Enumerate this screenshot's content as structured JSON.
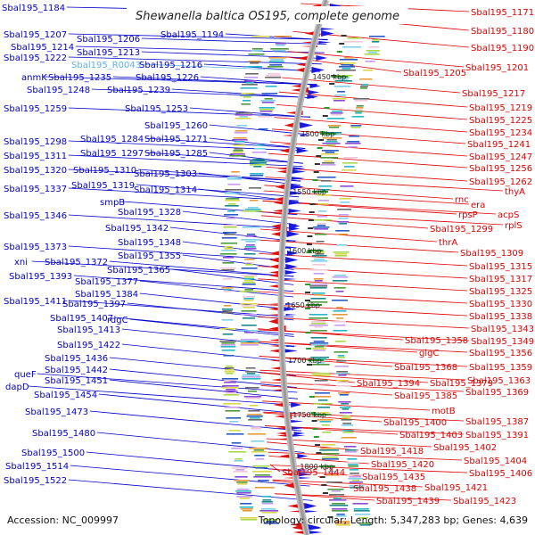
{
  "title": "Shewanella baltica OS195, complete genome",
  "footer": {
    "accession": "Accession: NC_009997",
    "topology": "Topology: circular; Length: 5,347,283 bp; Genes: 4,639"
  },
  "colors": {
    "left_label": "#0000cc",
    "right_label": "#e00000",
    "rna_label": "#5fb0e6",
    "forward_feature": "#1a1adc",
    "reverse_feature": "#e01010",
    "backbone": "#9a9a9a",
    "tick_mark": "#2a9a2a"
  },
  "ticks": [
    "1450 kbp",
    "1500 kbp",
    "1550 kbp",
    "1600 kbp",
    "1650 kbp",
    "1700 kbp",
    "1750 kbp",
    "1800 kbp"
  ],
  "left_labels": [
    "Sbal195_1184",
    "Sbal195_1207",
    "Sbal195_1206",
    "Sbal195_1194",
    "Sbal195_1214",
    "Sbal195_1213",
    "Sbal195_1222",
    "Sbal195_R0043",
    "Sbal195_1216",
    "anmK",
    "Sbal195_1235",
    "Sbal195_1226",
    "Sbal195_1248",
    "Sbal195_1239",
    "Sbal195_1259",
    "Sbal195_1253",
    "Sbal195_1260",
    "Sbal195_1298",
    "Sbal195_1284",
    "Sbal195_1271",
    "Sbal195_1297",
    "Sbal195_1285",
    "Sbal195_1311",
    "Sbal195_1320",
    "Sbal195_1310",
    "Sbal195_1303",
    "Sbal195_1319",
    "Sbal195_1337",
    "Sbal195_1314",
    "smpB",
    "Sbal195_1328",
    "Sbal195_1346",
    "Sbal195_1342",
    "Sbal195_1348",
    "Sbal195_1373",
    "Sbal195_1355",
    "xni",
    "Sbal195_1372",
    "Sbal195_1365",
    "Sbal195_1393",
    "Sbal195_1377",
    "Sbal195_1384",
    "Sbal195_1411",
    "Sbal195_1397",
    "Sbal195_1407",
    "rdgC",
    "Sbal195_1413",
    "Sbal195_1422",
    "Sbal195_1436",
    "Sbal195_1442",
    "queF",
    "Sbal195_1451",
    "dapD",
    "Sbal195_1454",
    "Sbal195_1473",
    "Sbal195_1480",
    "Sbal195_1500",
    "Sbal195_1514",
    "Sbal195_1522"
  ],
  "right_labels": [
    "Sbal195_1171",
    "Sbal195_1180",
    "Sbal195_1190",
    "Sbal195_1201",
    "Sbal195_1205",
    "Sbal195_1217",
    "Sbal195_1219",
    "Sbal195_1225",
    "Sbal195_1234",
    "Sbal195_1241",
    "Sbal195_1247",
    "Sbal195_1256",
    "Sbal195_1262",
    "thyA",
    "rnc",
    "era",
    "acpS",
    "rpsP",
    "rplS",
    "Sbal195_1299",
    "thrA",
    "Sbal195_1309",
    "Sbal195_1315",
    "Sbal195_1317",
    "Sbal195_1325",
    "Sbal195_1330",
    "Sbal195_1338",
    "Sbal195_1343",
    "Sbal195_1358",
    "Sbal195_1349",
    "glgC",
    "Sbal195_1356",
    "Sbal195_1368",
    "Sbal195_1359",
    "Sbal195_1394",
    "Sbal195_1379",
    "Sbal195_1363",
    "Sbal195_1385",
    "Sbal195_1369",
    "motB",
    "Sbal195_1400",
    "Sbal195_1387",
    "Sbal195_1403",
    "Sbal195_1391",
    "Sbal195_1418",
    "Sbal195_1402",
    "Sbal195_1404",
    "Sbal195_1420",
    "Sbal195_1406",
    "Sbal195_1444",
    "Sbal195_1435",
    "Sbal195_1421",
    "Sbal195_1438",
    "Sbal195_1439",
    "Sbal195_1423"
  ]
}
